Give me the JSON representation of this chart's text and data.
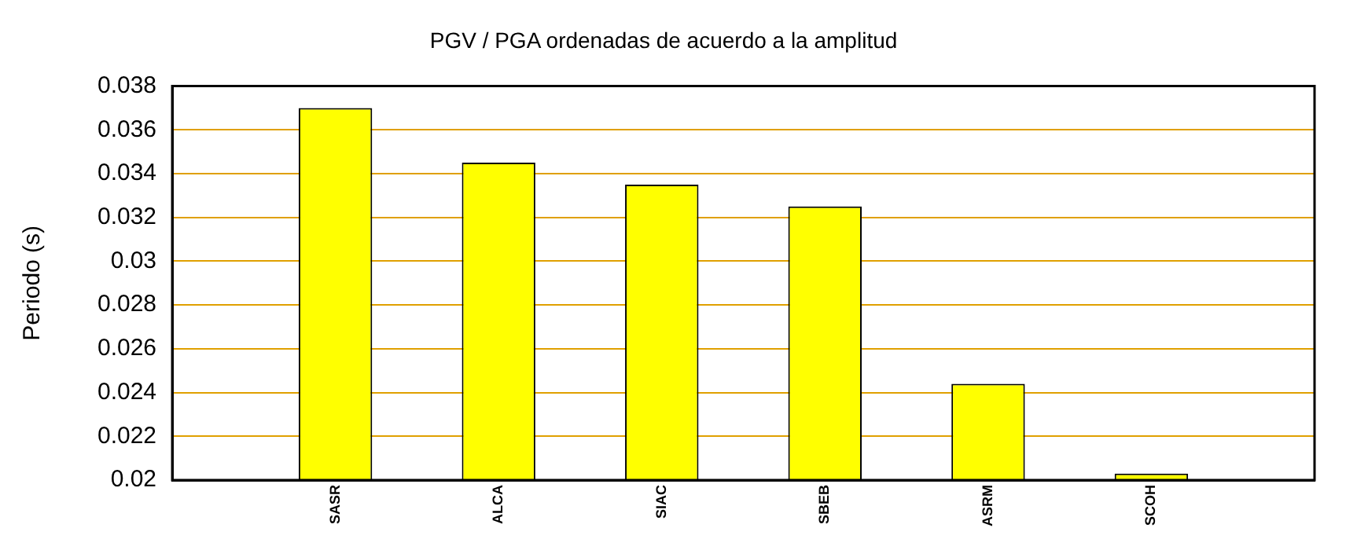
{
  "chart_data": {
    "type": "bar",
    "title": "PGV / PGA ordenadas de acuerdo a la amplitud",
    "ylabel": "Periodo (s)",
    "categories": [
      "SASR",
      "ALCA",
      "SIAC",
      "SBEB",
      "ASRM",
      "SCOH"
    ],
    "values": [
      0.037,
      0.0345,
      0.0335,
      0.0325,
      0.0244,
      0.0203
    ],
    "color": "#ffff00",
    "ylim": [
      0.02,
      0.038
    ],
    "yticks": [
      0.02,
      0.022,
      0.024,
      0.026,
      0.028,
      0.03,
      0.032,
      0.034,
      0.036,
      0.038
    ],
    "grid": "y",
    "legend": false
  }
}
